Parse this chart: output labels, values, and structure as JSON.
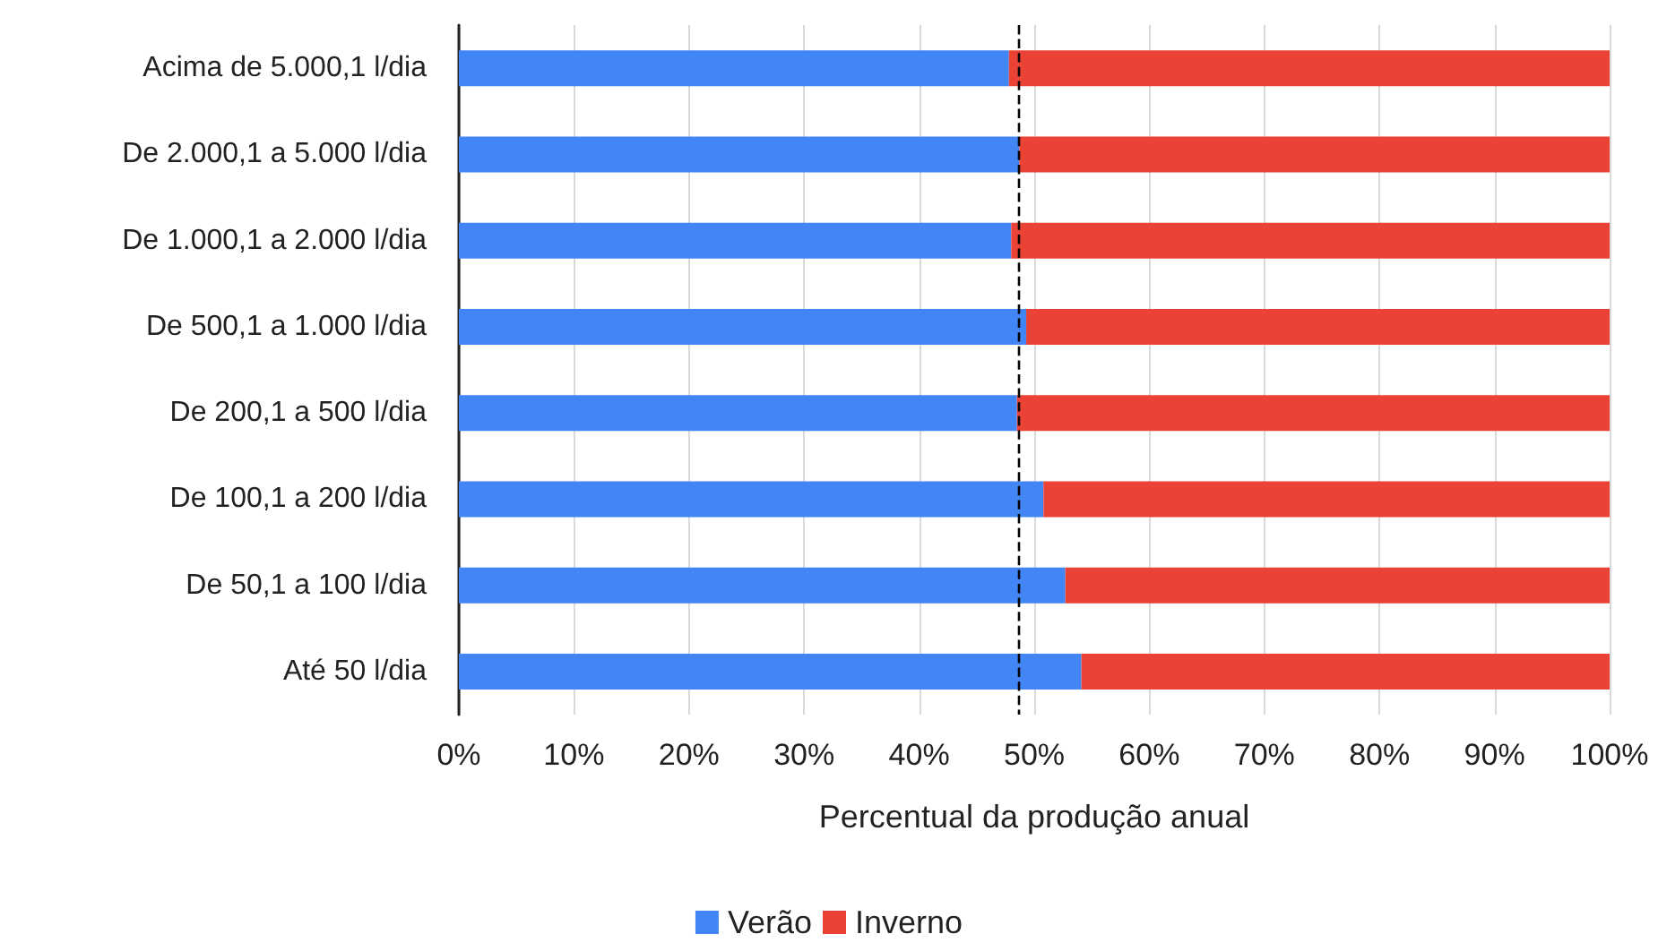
{
  "chart_data": {
    "type": "bar",
    "orientation": "horizontal",
    "stacked": true,
    "categories": [
      "Acima de 5.000,1 l/dia",
      "De 2.000,1 a 5.000 l/dia",
      "De 1.000,1 a 2.000 l/dia",
      "De 500,1 a 1.000 l/dia",
      "De 200,1 a 500 l/dia",
      "De 100,1 a 200 l/dia",
      "De 50,1 a 100 l/dia",
      "Até 50 l/dia"
    ],
    "series": [
      {
        "name": "Verão",
        "color": "#4285f4",
        "values": [
          47.8,
          48.7,
          48.0,
          49.3,
          48.5,
          50.8,
          52.7,
          54.1
        ]
      },
      {
        "name": "Inverno",
        "color": "#ea4335",
        "values": [
          52.2,
          51.3,
          52.0,
          50.7,
          51.5,
          49.2,
          47.3,
          45.9
        ]
      }
    ],
    "xlabel": "Percentual da produção anual",
    "xlim": [
      0,
      100
    ],
    "xticks": [
      {
        "value": 0,
        "label": "0%"
      },
      {
        "value": 10,
        "label": "10%"
      },
      {
        "value": 20,
        "label": "20%"
      },
      {
        "value": 30,
        "label": "30%"
      },
      {
        "value": 40,
        "label": "40%"
      },
      {
        "value": 50,
        "label": "50%"
      },
      {
        "value": 60,
        "label": "60%"
      },
      {
        "value": 70,
        "label": "70%"
      },
      {
        "value": 80,
        "label": "80%"
      },
      {
        "value": 90,
        "label": "90%"
      },
      {
        "value": 100,
        "label": "100%"
      }
    ],
    "ref_lines": [
      {
        "axis": "x",
        "value": 48.7,
        "color": "#000000",
        "line_style": "dashed"
      }
    ],
    "grid": "x",
    "legend": "bottom"
  }
}
